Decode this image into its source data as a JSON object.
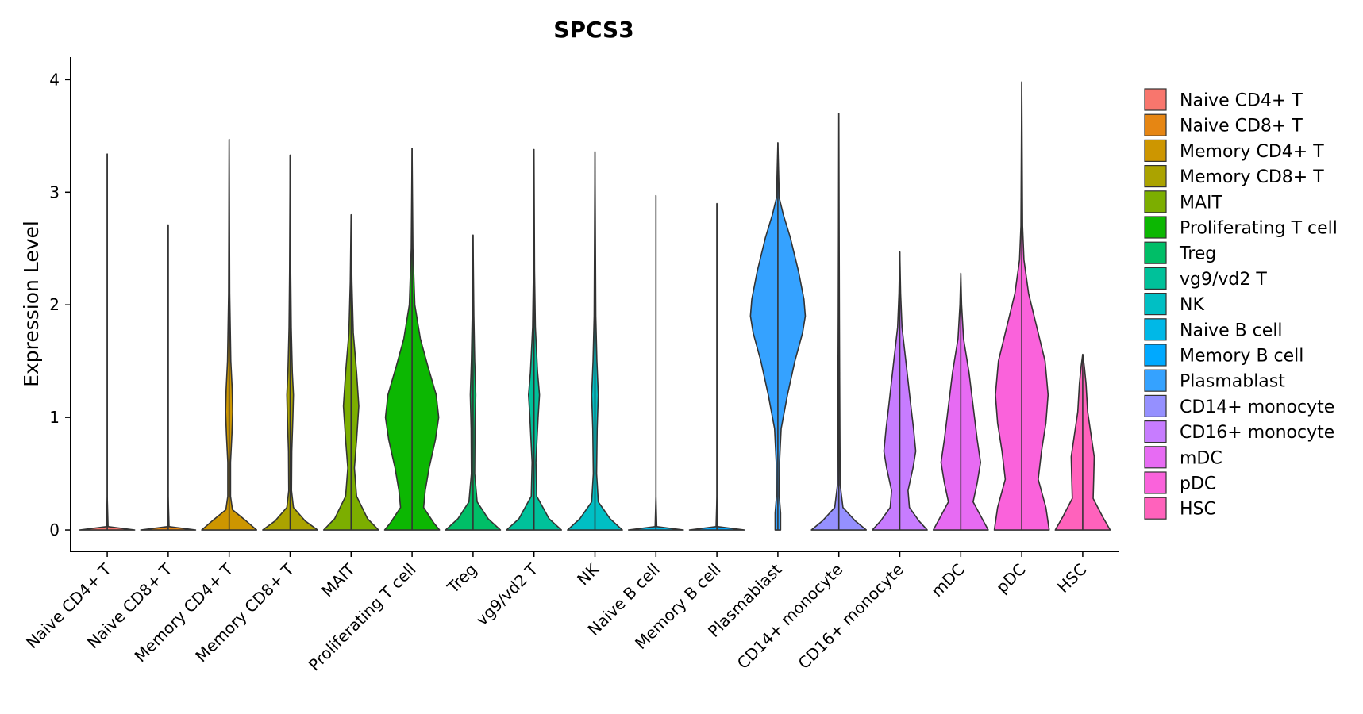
{
  "chart_data": {
    "type": "violin",
    "title": "SPCS3",
    "xlabel": "",
    "ylabel": "Expression Level",
    "ylim": [
      -0.19,
      4.2
    ],
    "yticks": [
      0,
      1,
      2,
      3,
      4
    ],
    "ytick_labels": [
      "0",
      "1",
      "2",
      "3",
      "4"
    ],
    "legend_position": "right",
    "series": [
      {
        "name": "Naive CD4+ T",
        "color": "#F8766D",
        "max": 3.34,
        "density": [
          [
            0,
            1
          ],
          [
            0.03,
            0.03
          ],
          [
            0.3,
            0
          ],
          [
            3.34,
            0
          ]
        ]
      },
      {
        "name": "Naive CD8+ T",
        "color": "#E68613",
        "max": 2.71,
        "density": [
          [
            0,
            0.95
          ],
          [
            0.03,
            0.03
          ],
          [
            0.3,
            0
          ],
          [
            2.71,
            0
          ]
        ]
      },
      {
        "name": "Memory CD4+ T",
        "color": "#CD9600",
        "max": 3.47,
        "density": [
          [
            0,
            1
          ],
          [
            0.08,
            0.62
          ],
          [
            0.18,
            0.12
          ],
          [
            0.3,
            0.05
          ],
          [
            0.6,
            0.05
          ],
          [
            0.85,
            0.1
          ],
          [
            1.05,
            0.13
          ],
          [
            1.25,
            0.11
          ],
          [
            1.5,
            0.06
          ],
          [
            1.8,
            0.04
          ],
          [
            2.1,
            0.02
          ],
          [
            3.47,
            0
          ]
        ]
      },
      {
        "name": "Memory CD8+ T",
        "color": "#ABA300",
        "max": 3.33,
        "density": [
          [
            0,
            1
          ],
          [
            0.08,
            0.55
          ],
          [
            0.2,
            0.12
          ],
          [
            0.35,
            0.05
          ],
          [
            0.7,
            0.06
          ],
          [
            1.0,
            0.1
          ],
          [
            1.2,
            0.12
          ],
          [
            1.4,
            0.08
          ],
          [
            1.8,
            0.04
          ],
          [
            2.3,
            0.02
          ],
          [
            3.33,
            0
          ]
        ]
      },
      {
        "name": "MAIT",
        "color": "#7CAE00",
        "max": 2.8,
        "density": [
          [
            0,
            1
          ],
          [
            0.1,
            0.6
          ],
          [
            0.3,
            0.2
          ],
          [
            0.55,
            0.12
          ],
          [
            0.8,
            0.2
          ],
          [
            1.1,
            0.28
          ],
          [
            1.4,
            0.2
          ],
          [
            1.75,
            0.08
          ],
          [
            2.2,
            0.03
          ],
          [
            2.8,
            0
          ]
        ]
      },
      {
        "name": "Proliferating T cell",
        "color": "#0CB702",
        "max": 3.39,
        "density": [
          [
            0,
            1
          ],
          [
            0.06,
            0.8
          ],
          [
            0.2,
            0.42
          ],
          [
            0.35,
            0.48
          ],
          [
            0.55,
            0.62
          ],
          [
            0.8,
            0.85
          ],
          [
            1.0,
            0.97
          ],
          [
            1.2,
            0.88
          ],
          [
            1.45,
            0.58
          ],
          [
            1.7,
            0.3
          ],
          [
            2.0,
            0.1
          ],
          [
            2.5,
            0.03
          ],
          [
            3.39,
            0
          ]
        ]
      },
      {
        "name": "Treg",
        "color": "#00BE67",
        "max": 2.62,
        "density": [
          [
            0,
            1
          ],
          [
            0.1,
            0.55
          ],
          [
            0.25,
            0.15
          ],
          [
            0.5,
            0.06
          ],
          [
            0.9,
            0.07
          ],
          [
            1.2,
            0.1
          ],
          [
            1.5,
            0.06
          ],
          [
            1.9,
            0.03
          ],
          [
            2.62,
            0
          ]
        ]
      },
      {
        "name": "vg9/vd2 T",
        "color": "#00C19A",
        "max": 3.38,
        "density": [
          [
            0,
            1
          ],
          [
            0.1,
            0.55
          ],
          [
            0.3,
            0.1
          ],
          [
            0.6,
            0.07
          ],
          [
            1.0,
            0.15
          ],
          [
            1.2,
            0.2
          ],
          [
            1.4,
            0.13
          ],
          [
            1.8,
            0.05
          ],
          [
            2.3,
            0.02
          ],
          [
            3.38,
            0
          ]
        ]
      },
      {
        "name": "NK",
        "color": "#00BFC4",
        "max": 3.36,
        "density": [
          [
            0,
            1
          ],
          [
            0.1,
            0.55
          ],
          [
            0.25,
            0.12
          ],
          [
            0.5,
            0.06
          ],
          [
            0.9,
            0.08
          ],
          [
            1.2,
            0.12
          ],
          [
            1.5,
            0.07
          ],
          [
            1.9,
            0.03
          ],
          [
            3.36,
            0
          ]
        ]
      },
      {
        "name": "Naive B cell",
        "color": "#00B8E7",
        "max": 2.97,
        "density": [
          [
            0,
            1
          ],
          [
            0.03,
            0.03
          ],
          [
            0.3,
            0
          ],
          [
            2.97,
            0
          ]
        ]
      },
      {
        "name": "Memory B cell",
        "color": "#00A9FF",
        "max": 2.9,
        "density": [
          [
            0,
            1
          ],
          [
            0.03,
            0.03
          ],
          [
            0.3,
            0
          ],
          [
            2.9,
            0
          ]
        ]
      },
      {
        "name": "Plasmablast",
        "color": "#35A2FF",
        "max": 3.44,
        "density": [
          [
            0,
            0.1
          ],
          [
            0.15,
            0.1
          ],
          [
            0.3,
            0.05
          ],
          [
            0.6,
            0.06
          ],
          [
            0.9,
            0.12
          ],
          [
            1.2,
            0.35
          ],
          [
            1.5,
            0.62
          ],
          [
            1.75,
            0.9
          ],
          [
            1.9,
            1.0
          ],
          [
            2.05,
            0.95
          ],
          [
            2.3,
            0.75
          ],
          [
            2.6,
            0.45
          ],
          [
            2.8,
            0.2
          ],
          [
            2.95,
            0.05
          ],
          [
            3.44,
            0
          ]
        ]
      },
      {
        "name": "CD14+ monocyte",
        "color": "#9590FF",
        "max": 3.7,
        "density": [
          [
            0,
            1
          ],
          [
            0.08,
            0.6
          ],
          [
            0.2,
            0.15
          ],
          [
            0.4,
            0.05
          ],
          [
            0.8,
            0.04
          ],
          [
            1.3,
            0.03
          ],
          [
            1.9,
            0.02
          ],
          [
            3.7,
            0
          ]
        ]
      },
      {
        "name": "CD16+ monocyte",
        "color": "#C77CFF",
        "max": 2.47,
        "density": [
          [
            0,
            1
          ],
          [
            0.08,
            0.7
          ],
          [
            0.2,
            0.35
          ],
          [
            0.35,
            0.3
          ],
          [
            0.55,
            0.48
          ],
          [
            0.7,
            0.58
          ],
          [
            0.9,
            0.5
          ],
          [
            1.15,
            0.38
          ],
          [
            1.5,
            0.22
          ],
          [
            1.8,
            0.08
          ],
          [
            2.1,
            0.03
          ],
          [
            2.47,
            0
          ]
        ]
      },
      {
        "name": "mDC",
        "color": "#E76BF3",
        "max": 2.28,
        "density": [
          [
            0,
            1
          ],
          [
            0.1,
            0.78
          ],
          [
            0.25,
            0.45
          ],
          [
            0.42,
            0.6
          ],
          [
            0.6,
            0.72
          ],
          [
            0.8,
            0.6
          ],
          [
            1.1,
            0.45
          ],
          [
            1.4,
            0.3
          ],
          [
            1.7,
            0.1
          ],
          [
            2.0,
            0.03
          ],
          [
            2.28,
            0
          ]
        ]
      },
      {
        "name": "pDC",
        "color": "#FA62DB",
        "max": 3.98,
        "density": [
          [
            0,
            1
          ],
          [
            0.2,
            0.88
          ],
          [
            0.45,
            0.6
          ],
          [
            0.7,
            0.72
          ],
          [
            0.95,
            0.88
          ],
          [
            1.2,
            0.96
          ],
          [
            1.5,
            0.85
          ],
          [
            1.8,
            0.55
          ],
          [
            2.1,
            0.25
          ],
          [
            2.4,
            0.08
          ],
          [
            2.7,
            0.03
          ],
          [
            3.98,
            0
          ]
        ]
      },
      {
        "name": "HSC",
        "color": "#FF62BC",
        "max": 1.56,
        "density": [
          [
            0,
            1
          ],
          [
            0.12,
            0.72
          ],
          [
            0.28,
            0.38
          ],
          [
            0.45,
            0.4
          ],
          [
            0.65,
            0.42
          ],
          [
            0.85,
            0.3
          ],
          [
            1.05,
            0.18
          ],
          [
            1.3,
            0.12
          ],
          [
            1.45,
            0.06
          ],
          [
            1.56,
            0
          ]
        ]
      }
    ]
  }
}
